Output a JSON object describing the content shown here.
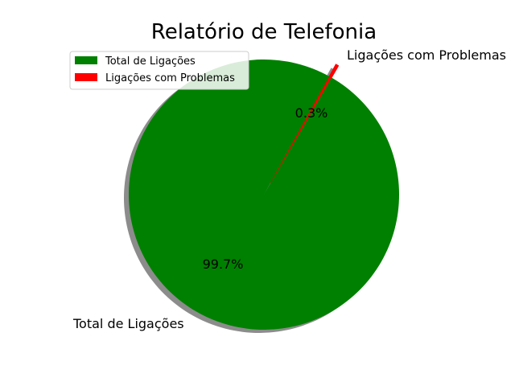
{
  "chart_data": {
    "type": "pie",
    "title": "Relatório de Telefonia",
    "labels": [
      "Total de Ligações",
      "Ligações com Problemas"
    ],
    "values": [
      99.7,
      0.3
    ],
    "percent_labels": [
      "99.7%",
      "0.3%"
    ],
    "colors": [
      "#008000",
      "#ff0000"
    ],
    "explode": [
      0,
      0.1
    ],
    "shadow": true,
    "legend": {
      "placement": "upper-left",
      "entries": [
        "Total de Ligações",
        "Ligações com Problemas"
      ]
    }
  }
}
